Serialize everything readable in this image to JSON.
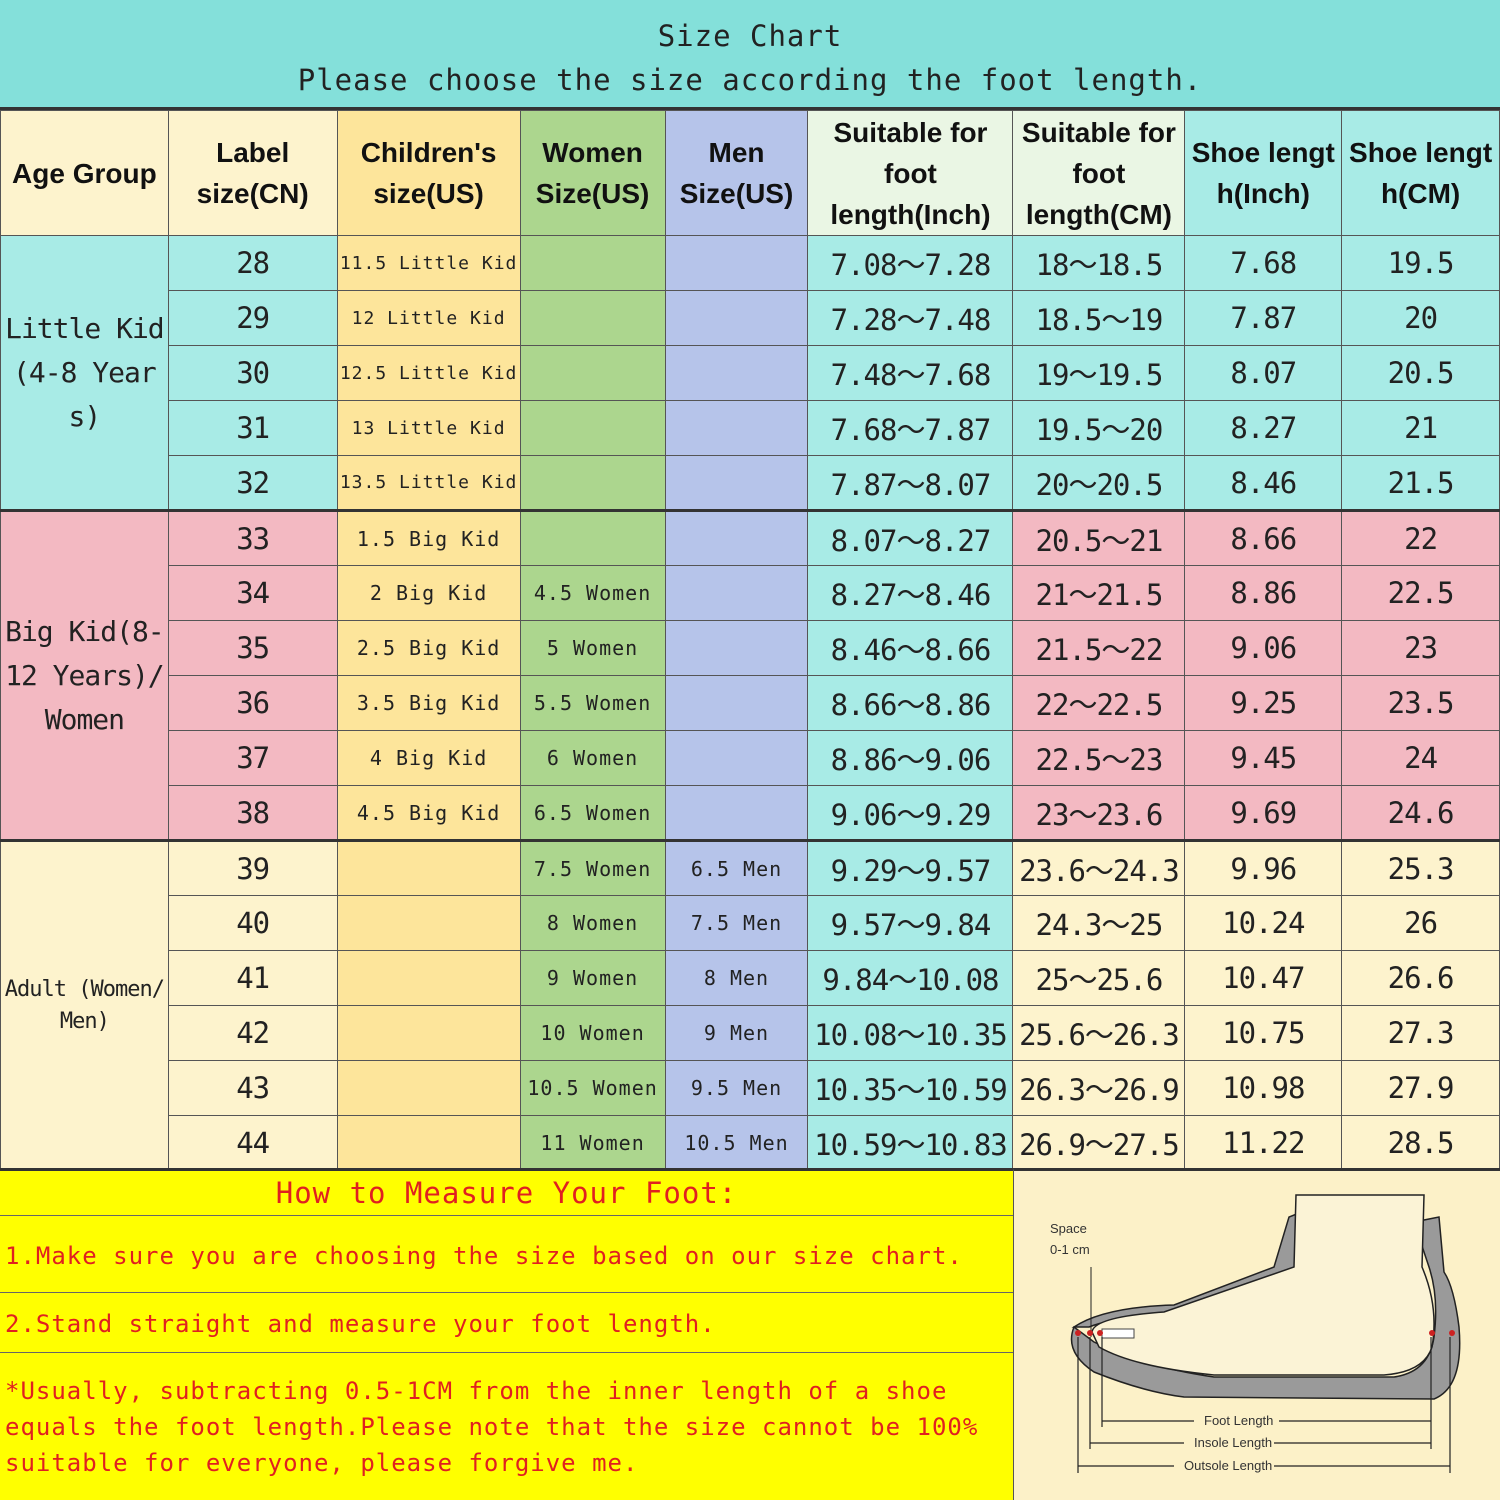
{
  "title": {
    "line1": "Size Chart",
    "line2": "Please choose the size according the foot length."
  },
  "colors": {
    "teal": "#a8ebe6",
    "pink": "#f3b9c2",
    "cream": "#fdf3cd",
    "yellow": "#fde59b",
    "green": "#acd68e",
    "lavender": "#b6c4ea",
    "header_light": "#eaf6e4",
    "title_bg": "#84e0da",
    "howto_bg": "#ffff00",
    "howto_text": "#e02020"
  },
  "headers": [
    "Age Group",
    "Label size(CN)",
    "Children's size(US)",
    "Women Size(US)",
    "Men Size(US)",
    "Suitable for foot length(Inch)",
    "Suitable for foot length(CM)",
    "Shoe length(Inch)",
    "Shoe length(CM)"
  ],
  "groups": [
    {
      "label": "Little Kid(4-8 Years)",
      "rows": [
        [
          "28",
          "11.5 Little Kid",
          "",
          "",
          "7.08～7.28",
          "18～18.5",
          "7.68",
          "19.5"
        ],
        [
          "29",
          "12 Little Kid",
          "",
          "",
          "7.28～7.48",
          "18.5～19",
          "7.87",
          "20"
        ],
        [
          "30",
          "12.5 Little Kid",
          "",
          "",
          "7.48～7.68",
          "19～19.5",
          "8.07",
          "20.5"
        ],
        [
          "31",
          "13 Little Kid",
          "",
          "",
          "7.68～7.87",
          "19.5～20",
          "8.27",
          "21"
        ],
        [
          "32",
          "13.5 Little Kid",
          "",
          "",
          "7.87～8.07",
          "20～20.5",
          "8.46",
          "21.5"
        ]
      ]
    },
    {
      "label": "Big Kid(8-12 Years)/Women",
      "rows": [
        [
          "33",
          "1.5 Big Kid",
          "",
          "",
          "8.07～8.27",
          "20.5～21",
          "8.66",
          "22"
        ],
        [
          "34",
          "2 Big Kid",
          "4.5 Women",
          "",
          "8.27～8.46",
          "21～21.5",
          "8.86",
          "22.5"
        ],
        [
          "35",
          "2.5 Big Kid",
          "5 Women",
          "",
          "8.46～8.66",
          "21.5～22",
          "9.06",
          "23"
        ],
        [
          "36",
          "3.5 Big Kid",
          "5.5 Women",
          "",
          "8.66～8.86",
          "22～22.5",
          "9.25",
          "23.5"
        ],
        [
          "37",
          "4 Big Kid",
          "6 Women",
          "",
          "8.86～9.06",
          "22.5～23",
          "9.45",
          "24"
        ],
        [
          "38",
          "4.5 Big Kid",
          "6.5 Women",
          "",
          "9.06～9.29",
          "23～23.6",
          "9.69",
          "24.6"
        ]
      ]
    },
    {
      "label": "Adult (Women/Men)",
      "rows": [
        [
          "39",
          "",
          "7.5 Women",
          "6.5 Men",
          "9.29～9.57",
          "23.6～24.3",
          "9.96",
          "25.3"
        ],
        [
          "40",
          "",
          "8 Women",
          "7.5 Men",
          "9.57～9.84",
          "24.3～25",
          "10.24",
          "26"
        ],
        [
          "41",
          "",
          "9 Women",
          "8 Men",
          "9.84～10.08",
          "25～25.6",
          "10.47",
          "26.6"
        ],
        [
          "42",
          "",
          "10 Women",
          "9 Men",
          "10.08～10.35",
          "25.6～26.3",
          "10.75",
          "27.3"
        ],
        [
          "43",
          "",
          "10.5 Women",
          "9.5 Men",
          "10.35～10.59",
          "26.3～26.9",
          "10.98",
          "27.9"
        ],
        [
          "44",
          "",
          "11 Women",
          "10.5 Men",
          "10.59～10.83",
          "26.9～27.5",
          "11.22",
          "28.5"
        ]
      ]
    }
  ],
  "howto": {
    "heading": "How to Measure Your Foot:",
    "step1": "1.Make sure you are choosing the size based on our size chart.",
    "step2": "2.Stand straight and measure your foot length.",
    "note": "*Usually, subtracting 0.5-1CM from the inner length of a shoe equals the foot length.Please note that the size cannot be 100% suitable for everyone, please forgive me."
  },
  "diagram": {
    "space_label": "Space",
    "space_value": "0-1 cm",
    "foot_length": "Foot Length",
    "insole_length": "Insole Length",
    "outsole_length": "Outsole Length"
  }
}
